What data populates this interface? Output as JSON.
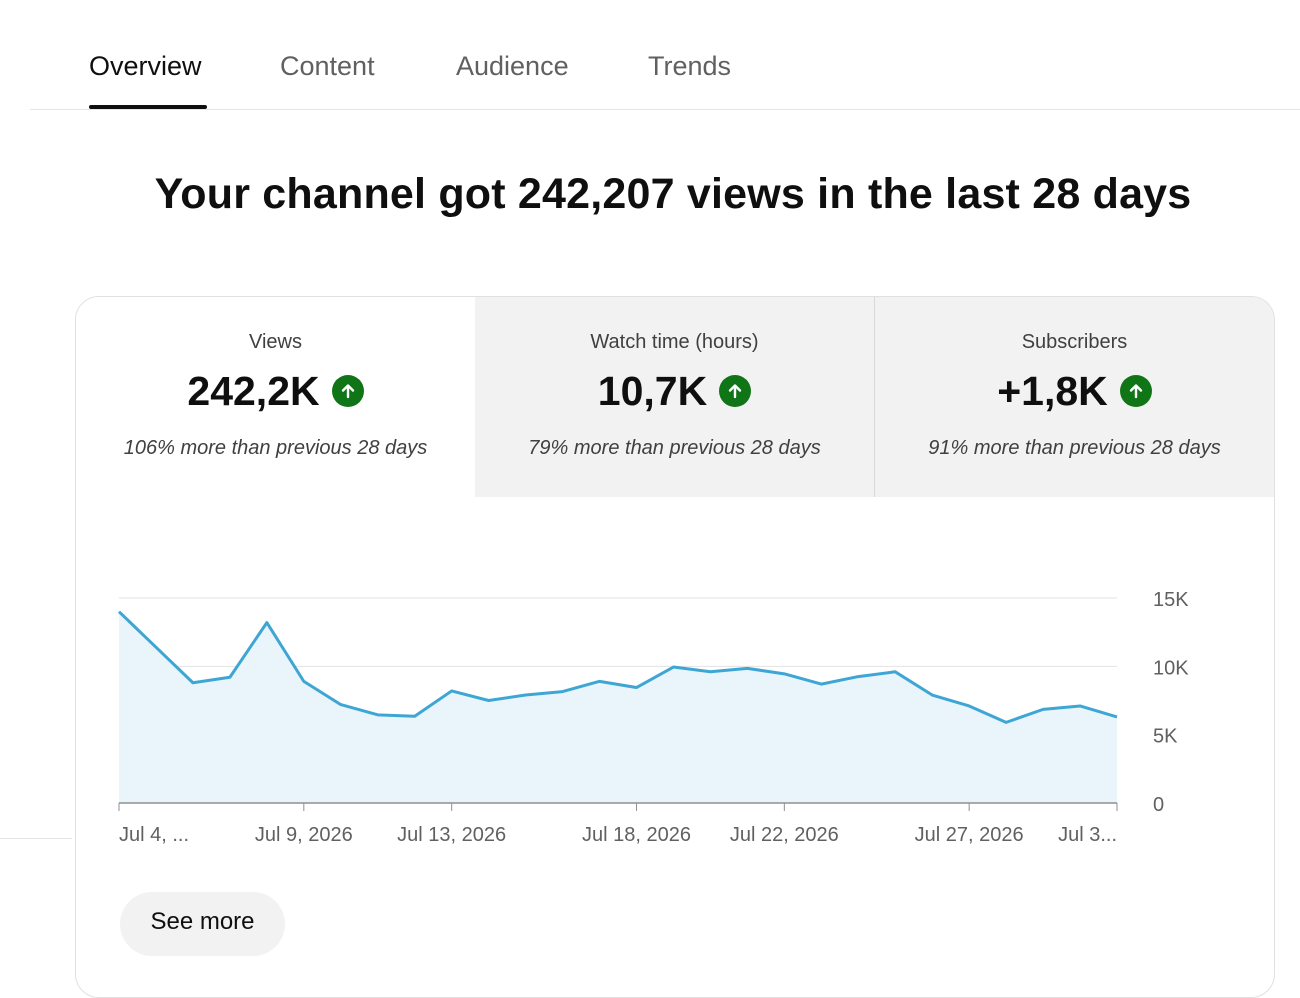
{
  "tabs": [
    {
      "label": "Overview",
      "active": true
    },
    {
      "label": "Content",
      "active": false
    },
    {
      "label": "Audience",
      "active": false
    },
    {
      "label": "Trends",
      "active": false
    }
  ],
  "headline": "Your channel got 242,207 views in the last 28 days",
  "metrics": [
    {
      "label": "Views",
      "value": "242,2K",
      "trend_icon": "arrow-up-icon",
      "note": "106% more than previous 28 days",
      "selected": true
    },
    {
      "label": "Watch time (hours)",
      "value": "10,7K",
      "trend_icon": "arrow-up-icon",
      "note": "79% more than previous 28 days",
      "selected": false
    },
    {
      "label": "Subscribers",
      "value": "+1,8K",
      "trend_icon": "arrow-up-icon",
      "note": "91% more than previous 28 days",
      "selected": false
    }
  ],
  "colors": {
    "line": "#3ea6d4",
    "area": "#eaf4fb",
    "trend_up": "#107516",
    "tab_active": "#0f0f0f"
  },
  "chart_data": {
    "type": "area",
    "x": [
      "Jul 4, 2026",
      "Jul 5, 2026",
      "Jul 6, 2026",
      "Jul 7, 2026",
      "Jul 8, 2026",
      "Jul 9, 2026",
      "Jul 10, 2026",
      "Jul 11, 2026",
      "Jul 12, 2026",
      "Jul 13, 2026",
      "Jul 14, 2026",
      "Jul 15, 2026",
      "Jul 16, 2026",
      "Jul 17, 2026",
      "Jul 18, 2026",
      "Jul 19, 2026",
      "Jul 20, 2026",
      "Jul 21, 2026",
      "Jul 22, 2026",
      "Jul 23, 2026",
      "Jul 24, 2026",
      "Jul 25, 2026",
      "Jul 26, 2026",
      "Jul 27, 2026",
      "Jul 28, 2026",
      "Jul 29, 2026",
      "Jul 30, 2026",
      "Jul 31, 2026"
    ],
    "values": [
      14000,
      11400,
      8800,
      9200,
      13200,
      8900,
      7200,
      6450,
      6350,
      8200,
      7500,
      7900,
      8150,
      8900,
      8450,
      9950,
      9600,
      9850,
      9450,
      8700,
      9250,
      9600,
      7900,
      7100,
      5900,
      6850,
      7100,
      6300
    ],
    "x_tick_labels": [
      {
        "index": 0,
        "label": "Jul 4, ..."
      },
      {
        "index": 5,
        "label": "Jul 9, 2026"
      },
      {
        "index": 9,
        "label": "Jul 13, 2026"
      },
      {
        "index": 14,
        "label": "Jul 18, 2026"
      },
      {
        "index": 18,
        "label": "Jul 22, 2026"
      },
      {
        "index": 23,
        "label": "Jul 27, 2026"
      },
      {
        "index": 27,
        "label": "Jul 3..."
      }
    ],
    "y_ticks": [
      {
        "value": 0,
        "label": "0"
      },
      {
        "value": 5000,
        "label": "5K"
      },
      {
        "value": 10000,
        "label": "10K"
      },
      {
        "value": 15000,
        "label": "15K"
      }
    ],
    "ylim": [
      0,
      15000
    ],
    "grid": true,
    "y_axis_side": "right"
  },
  "see_more_label": "See more"
}
